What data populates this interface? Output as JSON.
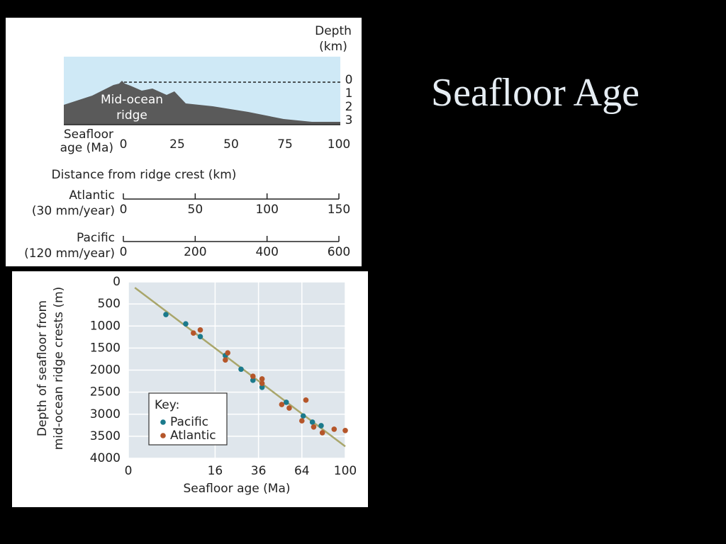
{
  "title": "Seafloor Age",
  "profile": {
    "depth_label": [
      "Depth",
      "(km)"
    ],
    "depth_ticks": [
      0,
      1,
      2,
      3
    ],
    "ridge_label": [
      "Mid-ocean",
      "ridge"
    ],
    "age_label": [
      "Seafloor",
      "age (Ma)"
    ],
    "age_ticks": [
      0,
      25,
      50,
      75,
      100
    ],
    "distance_title": "Distance from ridge crest (km)",
    "scales": [
      {
        "name": [
          "Atlantic",
          "(30 mm/year)"
        ],
        "ticks": [
          0,
          50,
          100,
          150
        ]
      },
      {
        "name": [
          "Pacific",
          "(120 mm/year)"
        ],
        "ticks": [
          0,
          200,
          400,
          600
        ]
      }
    ]
  },
  "chart_data": [
    {
      "type": "scatter",
      "xlabel": "Seafloor age (Ma)",
      "ylabel": [
        "Depth of seafloor from",
        "mid-ocean ridge crests (m)"
      ],
      "legend_title": "Key:",
      "legend": "lower left",
      "xscale": "sqrt",
      "xlim": [
        0,
        100
      ],
      "xticks": [
        0,
        16,
        36,
        64,
        100
      ],
      "ylim": [
        0,
        4000
      ],
      "y_inverted": true,
      "yticks": [
        0,
        500,
        1000,
        1500,
        2000,
        2500,
        3000,
        3500,
        4000
      ],
      "grid": true,
      "trend": {
        "color": "#a9a66b",
        "x": [
          0.09,
          100
        ],
        "values": [
          130,
          3730
        ]
      },
      "series": [
        {
          "name": "Pacific",
          "color": "#1b7a8c",
          "x": [
            3,
            7,
            11,
            20,
            27,
            33,
            38,
            53,
            65,
            72,
            79
          ],
          "values": [
            740,
            950,
            1240,
            1670,
            1980,
            2230,
            2390,
            2730,
            3040,
            3180,
            3260
          ]
        },
        {
          "name": "Atlantic",
          "color": "#b5562a",
          "x": [
            9,
            11,
            20,
            21,
            33,
            38,
            38,
            50,
            55,
            64,
            67,
            73,
            80,
            90,
            100
          ],
          "values": [
            1160,
            1090,
            1770,
            1610,
            2140,
            2200,
            2300,
            2780,
            2860,
            3150,
            2680,
            3290,
            3420,
            3340,
            3370
          ]
        }
      ]
    }
  ]
}
